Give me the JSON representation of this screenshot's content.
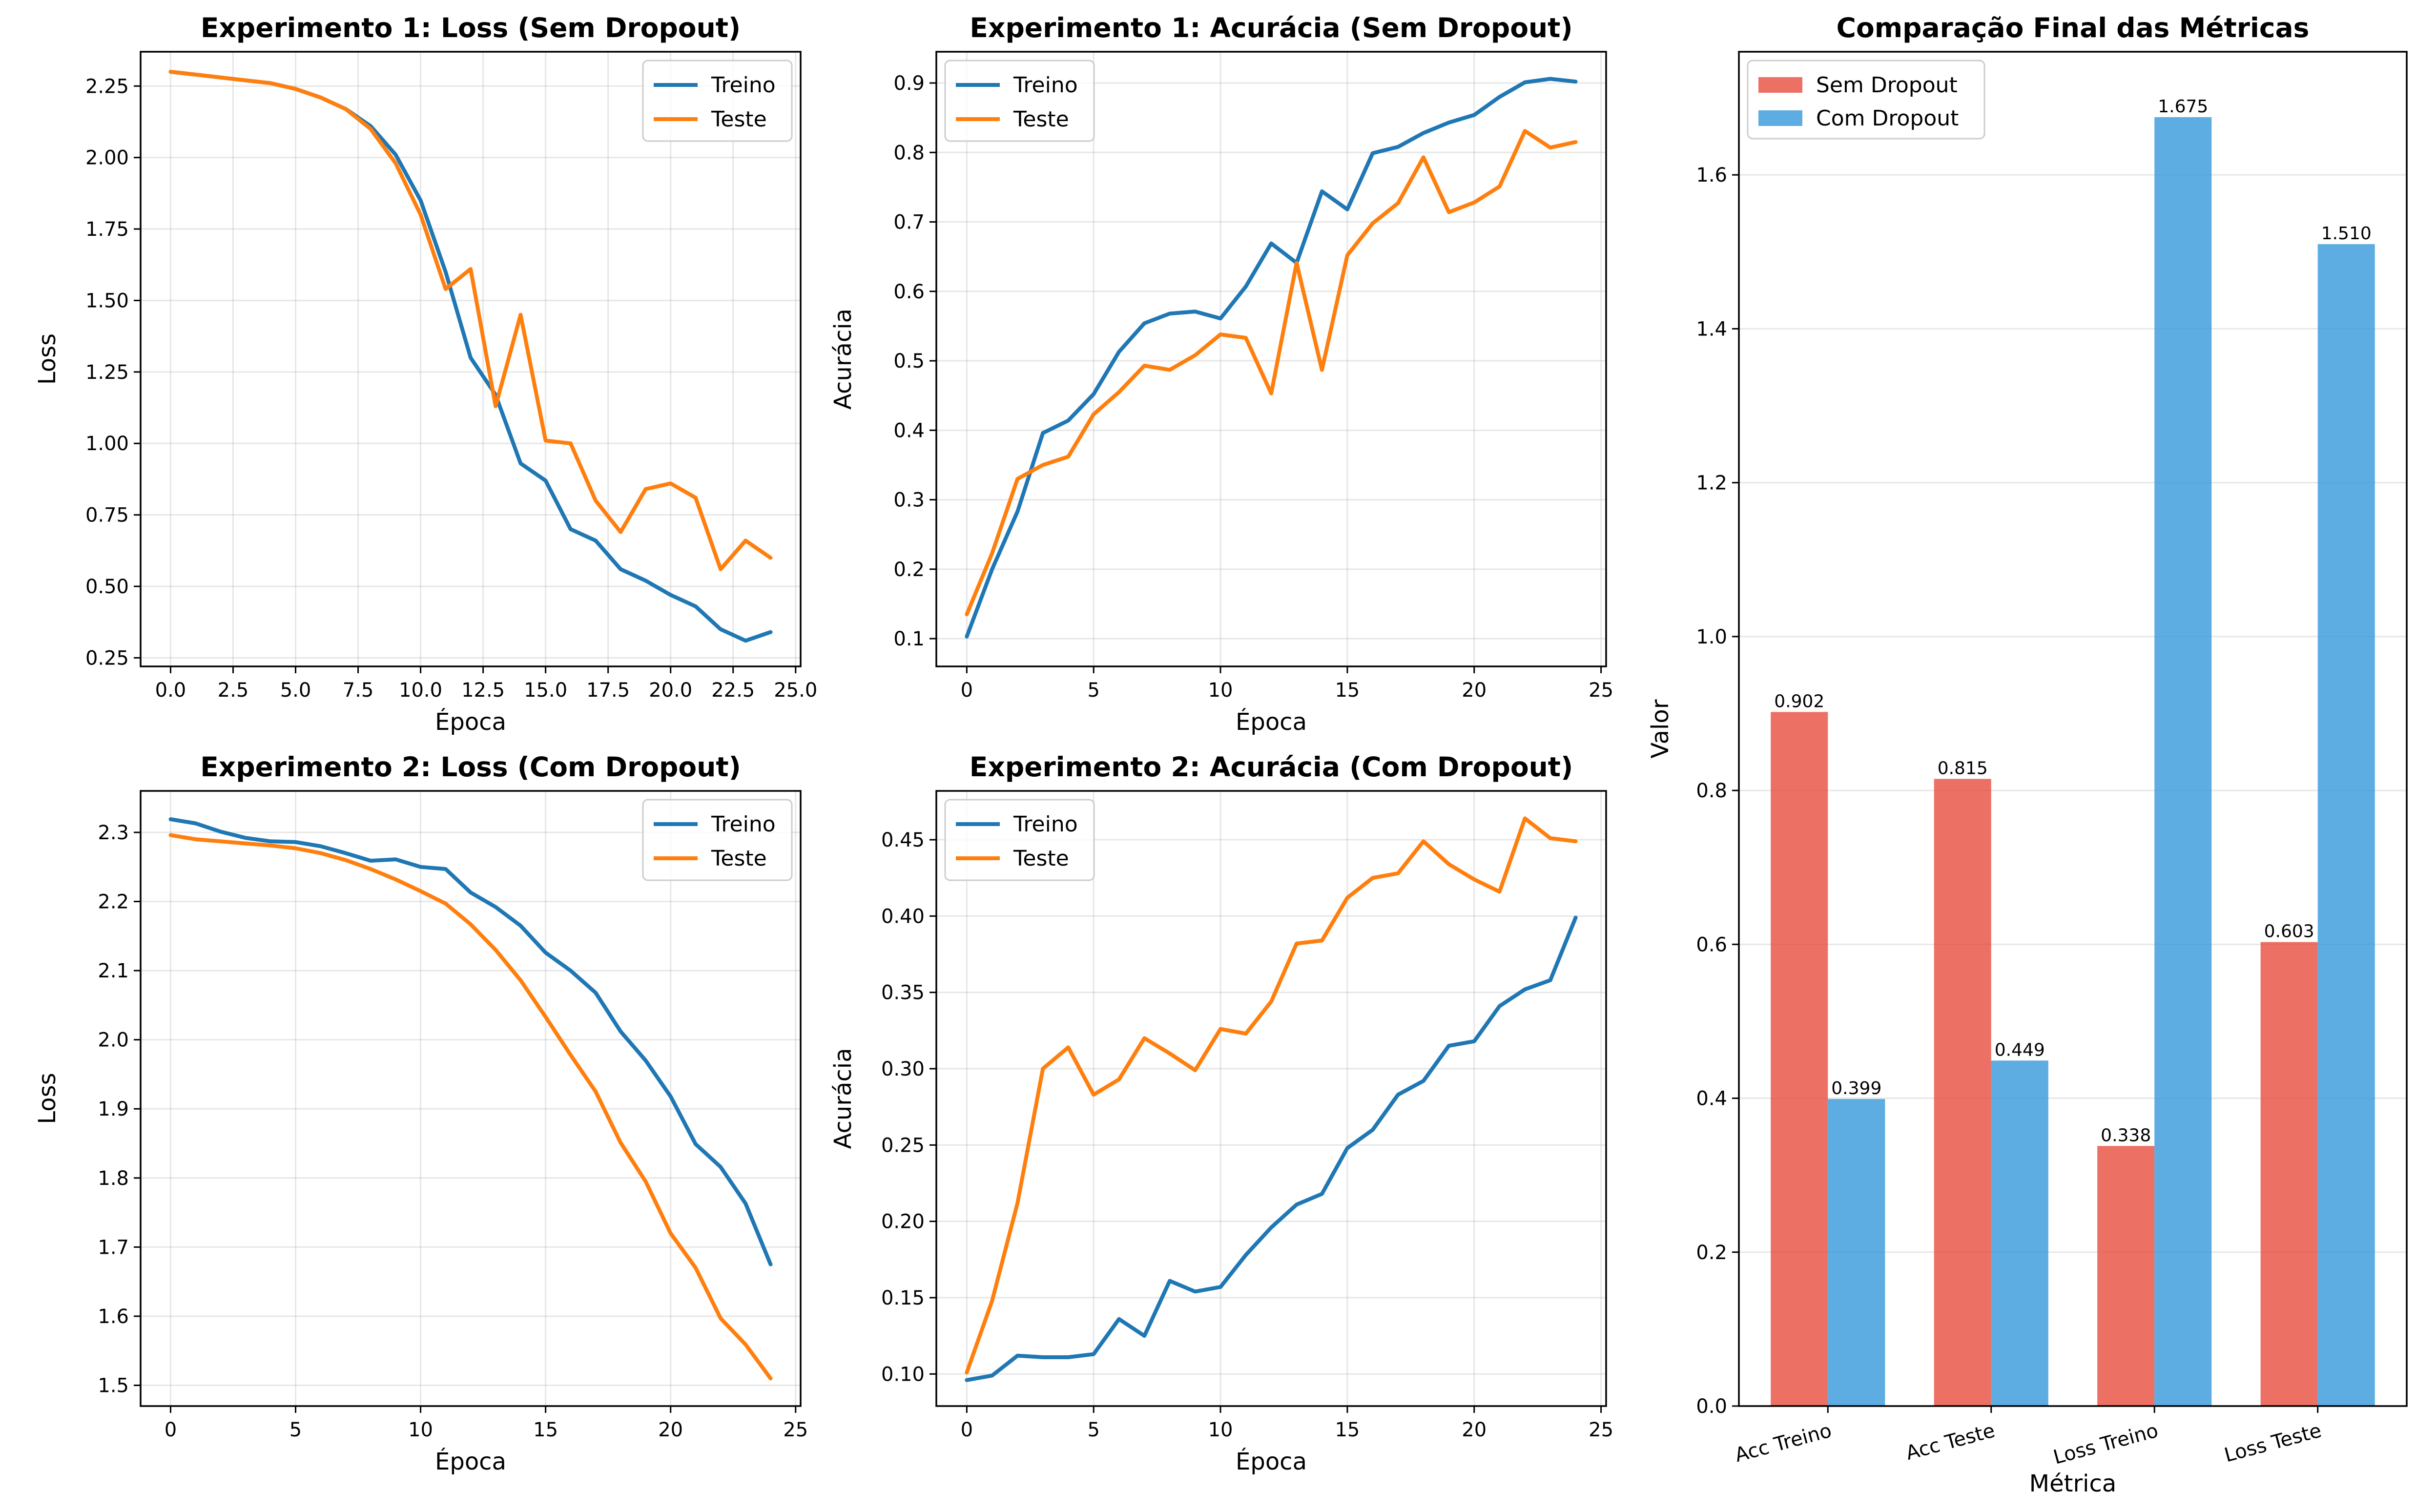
{
  "colors": {
    "treino": "#1f77b4",
    "teste": "#ff7f0e",
    "sem_dropout": "#e74c3c",
    "com_dropout": "#3498db"
  },
  "chart_data": [
    {
      "type": "line",
      "title": "Experimento 1: Loss (Sem Dropout)",
      "xlabel": "Época",
      "ylabel": "Loss",
      "xlim": [
        -1.2,
        25.2
      ],
      "ylim": [
        0.22,
        2.37
      ],
      "xticks": [
        0,
        2.5,
        5,
        7.5,
        10,
        12.5,
        15,
        17.5,
        20,
        22.5,
        25
      ],
      "xtick_labels": [
        "0.0",
        "2.5",
        "5.0",
        "7.5",
        "10.0",
        "12.5",
        "15.0",
        "17.5",
        "20.0",
        "22.5",
        "25.0"
      ],
      "yticks": [
        0.25,
        0.5,
        0.75,
        1.0,
        1.25,
        1.5,
        1.75,
        2.0,
        2.25
      ],
      "ytick_labels": [
        "0.25",
        "0.50",
        "0.75",
        "1.00",
        "1.25",
        "1.50",
        "1.75",
        "2.00",
        "2.25"
      ],
      "grid": true,
      "legend": "top-right",
      "x": [
        0,
        1,
        2,
        3,
        4,
        5,
        6,
        7,
        8,
        9,
        10,
        11,
        12,
        13,
        14,
        15,
        16,
        17,
        18,
        19,
        20,
        21,
        22,
        23,
        24
      ],
      "series": [
        {
          "name": "Treino",
          "color_key": "treino",
          "values": [
            2.3,
            2.29,
            2.28,
            2.27,
            2.26,
            2.24,
            2.21,
            2.17,
            2.11,
            2.01,
            1.85,
            1.6,
            1.3,
            1.17,
            0.93,
            0.87,
            0.7,
            0.66,
            0.56,
            0.52,
            0.47,
            0.43,
            0.35,
            0.31,
            0.34
          ]
        },
        {
          "name": "Teste",
          "color_key": "teste",
          "values": [
            2.3,
            2.29,
            2.28,
            2.27,
            2.26,
            2.24,
            2.21,
            2.17,
            2.1,
            1.98,
            1.8,
            1.54,
            1.61,
            1.13,
            1.45,
            1.01,
            1.0,
            0.8,
            0.69,
            0.84,
            0.86,
            0.81,
            0.56,
            0.66,
            0.6
          ]
        }
      ]
    },
    {
      "type": "line",
      "title": "Experimento 1: Acurácia (Sem Dropout)",
      "xlabel": "Época",
      "ylabel": "Acurácia",
      "xlim": [
        -1.2,
        25.2
      ],
      "ylim": [
        0.06,
        0.945
      ],
      "xticks": [
        0,
        5,
        10,
        15,
        20,
        25
      ],
      "xtick_labels": [
        "0",
        "5",
        "10",
        "15",
        "20",
        "25"
      ],
      "yticks": [
        0.1,
        0.2,
        0.3,
        0.4,
        0.5,
        0.6,
        0.7,
        0.8,
        0.9
      ],
      "ytick_labels": [
        "0.1",
        "0.2",
        "0.3",
        "0.4",
        "0.5",
        "0.6",
        "0.7",
        "0.8",
        "0.9"
      ],
      "grid": true,
      "legend": "top-left",
      "x": [
        0,
        1,
        2,
        3,
        4,
        5,
        6,
        7,
        8,
        9,
        10,
        11,
        12,
        13,
        14,
        15,
        16,
        17,
        18,
        19,
        20,
        21,
        22,
        23,
        24
      ],
      "series": [
        {
          "name": "Treino",
          "color_key": "treino",
          "values": [
            0.103,
            0.2,
            0.283,
            0.396,
            0.414,
            0.452,
            0.513,
            0.554,
            0.568,
            0.571,
            0.561,
            0.607,
            0.669,
            0.641,
            0.744,
            0.718,
            0.799,
            0.808,
            0.828,
            0.843,
            0.854,
            0.88,
            0.901,
            0.906,
            0.902
          ]
        },
        {
          "name": "Teste",
          "color_key": "teste",
          "values": [
            0.135,
            0.223,
            0.33,
            0.35,
            0.362,
            0.423,
            0.455,
            0.493,
            0.487,
            0.508,
            0.538,
            0.533,
            0.453,
            0.641,
            0.487,
            0.652,
            0.698,
            0.727,
            0.793,
            0.714,
            0.728,
            0.751,
            0.831,
            0.807,
            0.815
          ]
        }
      ]
    },
    {
      "type": "line",
      "title": "Experimento 2: Loss (Com Dropout)",
      "xlabel": "Época",
      "ylabel": "Loss",
      "xlim": [
        -1.2,
        25.2
      ],
      "ylim": [
        1.47,
        2.36
      ],
      "xticks": [
        0,
        5,
        10,
        15,
        20,
        25
      ],
      "xtick_labels": [
        "0",
        "5",
        "10",
        "15",
        "20",
        "25"
      ],
      "yticks": [
        1.5,
        1.6,
        1.7,
        1.8,
        1.9,
        2.0,
        2.1,
        2.2,
        2.3
      ],
      "ytick_labels": [
        "1.5",
        "1.6",
        "1.7",
        "1.8",
        "1.9",
        "2.0",
        "2.1",
        "2.2",
        "2.3"
      ],
      "grid": true,
      "legend": "top-right",
      "x": [
        0,
        1,
        2,
        3,
        4,
        5,
        6,
        7,
        8,
        9,
        10,
        11,
        12,
        13,
        14,
        15,
        16,
        17,
        18,
        19,
        20,
        21,
        22,
        23,
        24
      ],
      "series": [
        {
          "name": "Treino",
          "color_key": "treino",
          "values": [
            2.319,
            2.313,
            2.301,
            2.292,
            2.287,
            2.286,
            2.28,
            2.27,
            2.259,
            2.261,
            2.25,
            2.247,
            2.213,
            2.192,
            2.165,
            2.126,
            2.1,
            2.068,
            2.012,
            1.97,
            1.918,
            1.849,
            1.816,
            1.763,
            1.675
          ]
        },
        {
          "name": "Teste",
          "color_key": "teste",
          "values": [
            2.296,
            2.29,
            2.287,
            2.284,
            2.281,
            2.277,
            2.27,
            2.26,
            2.247,
            2.232,
            2.215,
            2.197,
            2.167,
            2.13,
            2.086,
            2.033,
            1.978,
            1.925,
            1.851,
            1.795,
            1.72,
            1.67,
            1.597,
            1.559,
            1.51
          ]
        }
      ]
    },
    {
      "type": "line",
      "title": "Experimento 2: Acurácia (Com Dropout)",
      "xlabel": "Época",
      "ylabel": "Acurácia",
      "xlim": [
        -1.2,
        25.2
      ],
      "ylim": [
        0.079,
        0.482
      ],
      "xticks": [
        0,
        5,
        10,
        15,
        20,
        25
      ],
      "xtick_labels": [
        "0",
        "5",
        "10",
        "15",
        "20",
        "25"
      ],
      "yticks": [
        0.1,
        0.15,
        0.2,
        0.25,
        0.3,
        0.35,
        0.4,
        0.45
      ],
      "ytick_labels": [
        "0.10",
        "0.15",
        "0.20",
        "0.25",
        "0.30",
        "0.35",
        "0.40",
        "0.45"
      ],
      "grid": true,
      "legend": "top-left",
      "x": [
        0,
        1,
        2,
        3,
        4,
        5,
        6,
        7,
        8,
        9,
        10,
        11,
        12,
        13,
        14,
        15,
        16,
        17,
        18,
        19,
        20,
        21,
        22,
        23,
        24
      ],
      "series": [
        {
          "name": "Treino",
          "color_key": "treino",
          "values": [
            0.096,
            0.099,
            0.112,
            0.111,
            0.111,
            0.113,
            0.136,
            0.125,
            0.161,
            0.154,
            0.157,
            0.178,
            0.196,
            0.211,
            0.218,
            0.248,
            0.26,
            0.283,
            0.292,
            0.315,
            0.318,
            0.341,
            0.352,
            0.358,
            0.399
          ]
        },
        {
          "name": "Teste",
          "color_key": "teste",
          "values": [
            0.101,
            0.148,
            0.212,
            0.3,
            0.314,
            0.283,
            0.293,
            0.32,
            0.31,
            0.299,
            0.326,
            0.323,
            0.344,
            0.382,
            0.384,
            0.412,
            0.425,
            0.428,
            0.449,
            0.434,
            0.424,
            0.416,
            0.464,
            0.451,
            0.449
          ]
        }
      ]
    },
    {
      "type": "bar",
      "title": "Comparação Final das Métricas",
      "xlabel": "Métrica",
      "ylabel": "Valor",
      "ylim": [
        0,
        1.76
      ],
      "yticks": [
        0.0,
        0.2,
        0.4,
        0.6,
        0.8,
        1.0,
        1.2,
        1.4,
        1.6
      ],
      "ytick_labels": [
        "0.0",
        "0.2",
        "0.4",
        "0.6",
        "0.8",
        "1.0",
        "1.2",
        "1.4",
        "1.6"
      ],
      "grid": true,
      "legend": "top-left",
      "categories": [
        "Acc Treino",
        "Acc Teste",
        "Loss Treino",
        "Loss Teste"
      ],
      "series": [
        {
          "name": "Sem Dropout",
          "color_key": "sem_dropout",
          "values": [
            0.902,
            0.815,
            0.338,
            0.603
          ],
          "labels": [
            "0.902",
            "0.815",
            "0.338",
            "0.603"
          ]
        },
        {
          "name": "Com Dropout",
          "color_key": "com_dropout",
          "values": [
            0.399,
            0.449,
            1.675,
            1.51
          ],
          "labels": [
            "0.399",
            "0.449",
            "1.675",
            "1.510"
          ]
        }
      ]
    }
  ]
}
